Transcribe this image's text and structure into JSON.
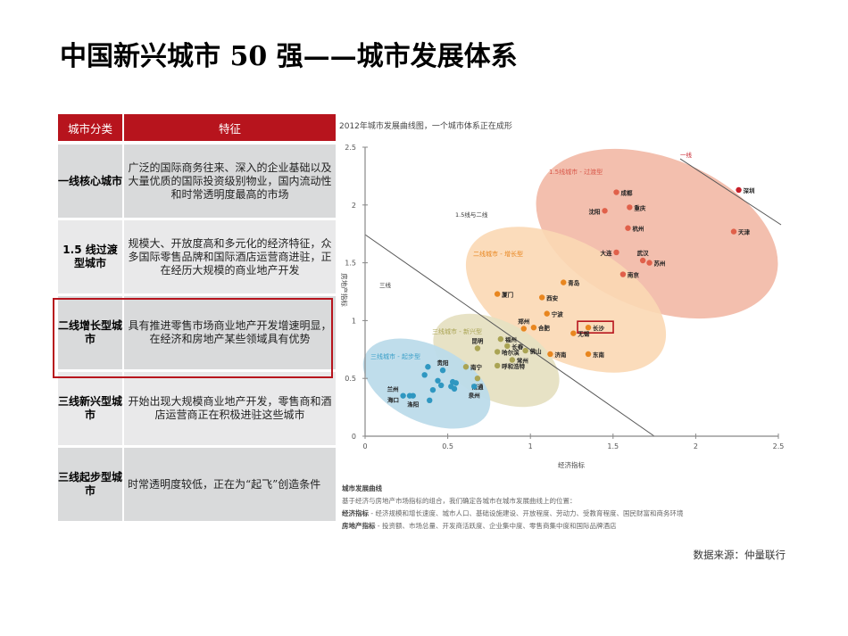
{
  "title": "中国新兴城市 50 强——城市发展体系",
  "table": {
    "headers": [
      "城市分类",
      "特征"
    ],
    "rows": [
      {
        "category": "一线核心城市",
        "feature": "广泛的国际商务往来、深入的企业基础以及大量优质的国际投资级别物业，国内流动性和时常透明度最高的市场"
      },
      {
        "category": "1.5 线过渡型城市",
        "feature": "规模大、开放度高和多元化的经济特征，众多国际零售品牌和国际酒店运营商进驻，正在经历大规模的商业地产开发"
      },
      {
        "category": "二线增长型城市",
        "feature": "具有推进零售市场商业地产开发增速明显，在经济和房地产某些领域具有优势",
        "highlighted": true
      },
      {
        "category": "三线新兴型城市",
        "feature": "开始出现大规模商业地产开发，零售商和酒店运营商正在积极进驻这些城市"
      },
      {
        "category": "三线起步型城市",
        "feature": "时常透明度较低，正在为“起飞”创造条件"
      }
    ]
  },
  "chart": {
    "title": "2012年城市发展曲线图，一个城市体系正在成形",
    "notes": {
      "heading": "城市发展曲线",
      "line1": "基于经济与房地产市场指标的组合，我们确定各城市在城市发展曲线上的位置：",
      "econ_label": "经济指标",
      "econ_text": " - 经济规模和增长速度、城市人口、基础设施建设、开放程度、劳动力、受教育程度、国民财富和商务环境",
      "re_label": "房地产指标",
      "re_text": " - 投资额、市场总量、开发商活跃度、企业集中度、零售商集中度和国际品牌酒店"
    }
  },
  "source": "数据来源：仲量联行",
  "chart_data": {
    "type": "scatter",
    "title": "2012年城市发展曲线图，一个城市体系正在成形",
    "xlabel": "经济指标",
    "ylabel": "房地产指标",
    "xlim": [
      0,
      2.5
    ],
    "ylim": [
      0,
      2.5
    ],
    "xticks": [
      0,
      0.5,
      1,
      1.5,
      2,
      2.5
    ],
    "yticks": [
      0,
      0.5,
      1,
      1.5,
      2,
      2.5
    ],
    "grid": false,
    "divider_labels": [
      "一线",
      "1.5线与二线",
      "三线"
    ],
    "series": [
      {
        "name": "一线",
        "color": "#c8202a",
        "points": [
          {
            "label": "深圳",
            "x": 2.26,
            "y": 2.13
          }
        ]
      },
      {
        "name": "1.5线城市 - 过渡型",
        "color": "#e0604a",
        "region_color": "#f3bfae",
        "points": [
          {
            "label": "成都",
            "x": 1.52,
            "y": 2.11
          },
          {
            "label": "沈阳",
            "x": 1.45,
            "y": 1.95
          },
          {
            "label": "重庆",
            "x": 1.6,
            "y": 1.98
          },
          {
            "label": "杭州",
            "x": 1.59,
            "y": 1.8
          },
          {
            "label": "天津",
            "x": 2.23,
            "y": 1.77
          },
          {
            "label": "大连",
            "x": 1.52,
            "y": 1.59
          },
          {
            "label": "武汉",
            "x": 1.68,
            "y": 1.52
          },
          {
            "label": "苏州",
            "x": 1.72,
            "y": 1.5
          },
          {
            "label": "南京",
            "x": 1.56,
            "y": 1.4
          }
        ]
      },
      {
        "name": "二线城市 - 增长型",
        "color": "#e8861f",
        "region_color": "#fbd8b4",
        "points": [
          {
            "label": "青岛",
            "x": 1.2,
            "y": 1.33
          },
          {
            "label": "厦门",
            "x": 0.8,
            "y": 1.23
          },
          {
            "label": "西安",
            "x": 1.07,
            "y": 1.2
          },
          {
            "label": "宁波",
            "x": 1.1,
            "y": 1.06
          },
          {
            "label": "郑州",
            "x": 0.96,
            "y": 0.93
          },
          {
            "label": "合肥",
            "x": 1.02,
            "y": 0.94
          },
          {
            "label": "长沙",
            "x": 1.35,
            "y": 0.94,
            "highlighted": true
          },
          {
            "label": "无锡",
            "x": 1.26,
            "y": 0.89
          },
          {
            "label": "济南",
            "x": 1.12,
            "y": 0.71
          },
          {
            "label": "东南",
            "x": 1.35,
            "y": 0.71
          }
        ]
      },
      {
        "name": "三线城市 - 新兴型",
        "color": "#aaa454",
        "region_color": "#e6e0c2",
        "points": [
          {
            "label": "昆明",
            "x": 0.68,
            "y": 0.76
          },
          {
            "label": "福州",
            "x": 0.82,
            "y": 0.84
          },
          {
            "label": "长春",
            "x": 0.86,
            "y": 0.78
          },
          {
            "label": "哈尔滨",
            "x": 0.8,
            "y": 0.73
          },
          {
            "label": "佛山",
            "x": 0.97,
            "y": 0.74
          },
          {
            "label": "常州",
            "x": 0.89,
            "y": 0.66
          },
          {
            "label": "南宁",
            "x": 0.61,
            "y": 0.6
          },
          {
            "label": "呼和浩特",
            "x": 0.8,
            "y": 0.61
          },
          {
            "label": "南通",
            "x": 0.68,
            "y": 0.5
          }
        ]
      },
      {
        "name": "三线城市 - 起步型",
        "color": "#2f97c1",
        "region_color": "#bcdbea",
        "points": [
          {
            "label": "贵阳",
            "x": 0.47,
            "y": 0.57
          },
          {
            "label": "",
            "x": 0.38,
            "y": 0.6
          },
          {
            "label": "",
            "x": 0.36,
            "y": 0.53
          },
          {
            "label": "",
            "x": 0.44,
            "y": 0.48
          },
          {
            "label": "",
            "x": 0.46,
            "y": 0.44
          },
          {
            "label": "",
            "x": 0.41,
            "y": 0.4
          },
          {
            "label": "",
            "x": 0.53,
            "y": 0.47
          },
          {
            "label": "",
            "x": 0.55,
            "y": 0.46
          },
          {
            "label": "",
            "x": 0.52,
            "y": 0.43
          },
          {
            "label": "",
            "x": 0.54,
            "y": 0.41
          },
          {
            "label": "",
            "x": 0.39,
            "y": 0.31
          },
          {
            "label": "兰州",
            "x": 0.23,
            "y": 0.35
          },
          {
            "label": "海口",
            "x": 0.27,
            "y": 0.35
          },
          {
            "label": "洛阳",
            "x": 0.29,
            "y": 0.35
          },
          {
            "label": "泉州",
            "x": 0.66,
            "y": 0.43
          }
        ]
      }
    ]
  }
}
